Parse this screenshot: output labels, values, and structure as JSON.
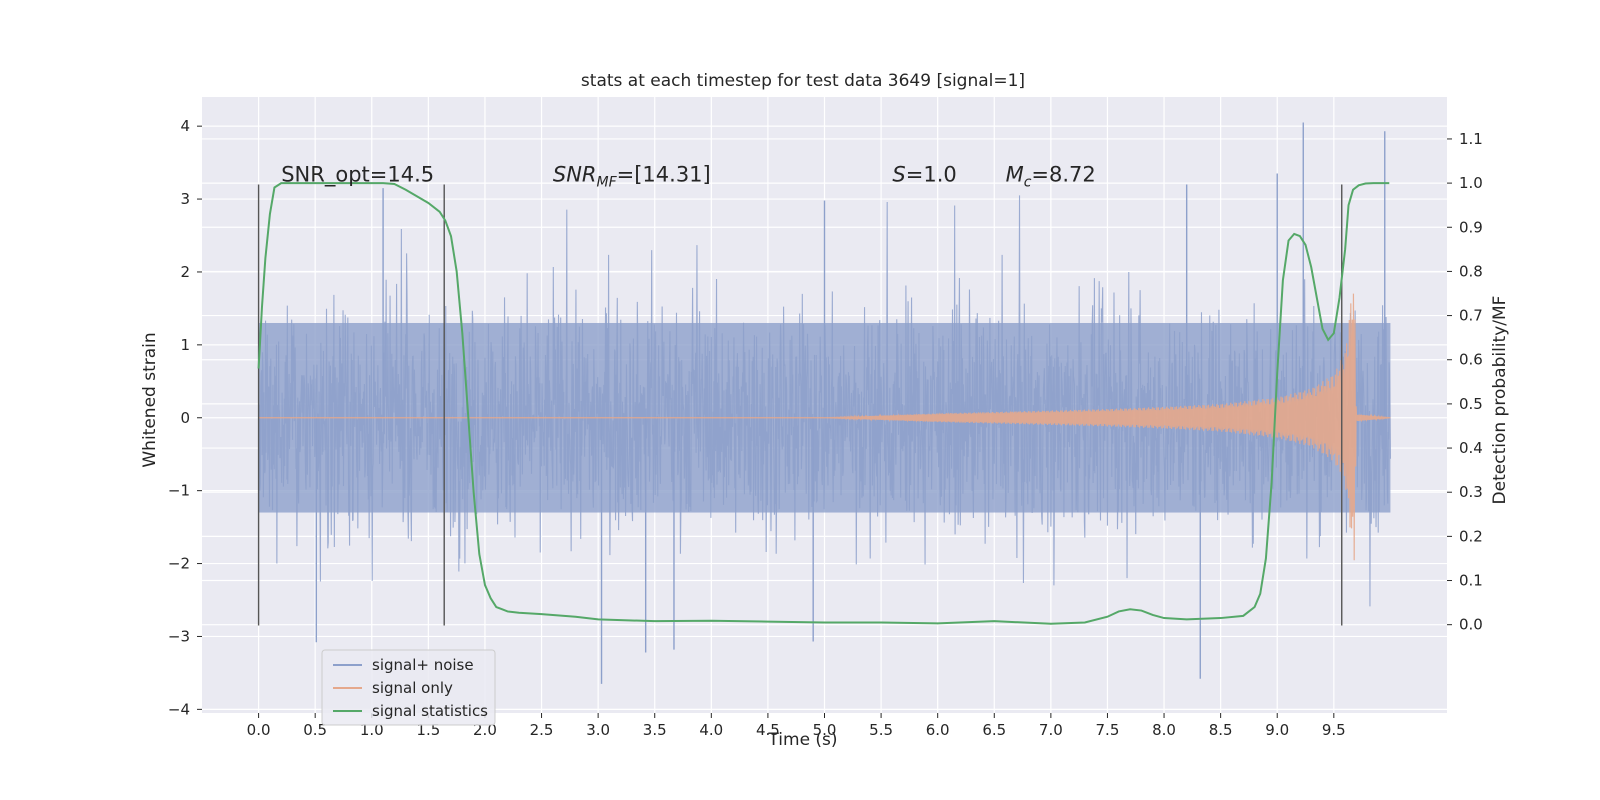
{
  "chart_data": {
    "type": "line",
    "title": "stats at each timestep for test data 3649 [signal=1]",
    "xlabel": "Time (s)",
    "ylabel": "Whitened strain",
    "y2label": "Detection probability/MF",
    "xlim": [
      -0.5,
      10.5
    ],
    "ylim": [
      -4.05,
      4.4
    ],
    "y2lim": [
      -0.2,
      1.195
    ],
    "xticks": [
      0.0,
      0.5,
      1.0,
      1.5,
      2.0,
      2.5,
      3.0,
      3.5,
      4.0,
      4.5,
      5.0,
      5.5,
      6.0,
      6.5,
      7.0,
      7.5,
      8.0,
      8.5,
      9.0,
      9.5
    ],
    "xtick_labels": [
      "0.0",
      "0.5",
      "1.0",
      "1.5",
      "2.0",
      "2.5",
      "3.0",
      "3.5",
      "4.0",
      "4.5",
      "5.0",
      "5.5",
      "6.0",
      "6.5",
      "7.0",
      "7.5",
      "8.0",
      "8.5",
      "9.0",
      "9.5"
    ],
    "yticks": [
      4,
      3,
      2,
      1,
      0,
      -1,
      -2,
      -3,
      -4
    ],
    "ytick_labels": [
      "4",
      "3",
      "2",
      "1",
      "0",
      "−1",
      "−2",
      "−3",
      "−4"
    ],
    "y2ticks": [
      1.1,
      1.0,
      0.9,
      0.8,
      0.7,
      0.6,
      0.5,
      0.4,
      0.3,
      0.2,
      0.1,
      0.0
    ],
    "y2tick_labels": [
      "1.1",
      "1.0",
      "0.9",
      "0.8",
      "0.7",
      "0.6",
      "0.5",
      "0.4",
      "0.3",
      "0.2",
      "0.1",
      "0.0"
    ],
    "grid": true,
    "legend_position": "lower-left",
    "annotations": [
      {
        "text": "SNR_opt=14.5",
        "x": 0.2,
        "y": 3.2
      },
      {
        "text": "SNR",
        "sub": "MF",
        "tail": "=[14.31]",
        "italic": true,
        "x": 2.6,
        "y": 3.2
      },
      {
        "text": "S",
        "tail": "=1.0",
        "italic": true,
        "x": 5.6,
        "y": 3.2
      },
      {
        "text": "M",
        "sub": "c",
        "tail": "=8.72",
        "italic": true,
        "x": 6.6,
        "y": 3.2
      }
    ],
    "vlines": {
      "x": [
        0.0,
        1.64,
        9.57
      ],
      "y_range": [
        -2.85,
        3.2
      ]
    },
    "series": [
      {
        "name": "signal+ noise",
        "color": "#8da0cb",
        "kind": "noise",
        "x_range": [
          0.0,
          10.0
        ],
        "band": 1.3,
        "extreme_points": [
          {
            "x": 0.51,
            "y": -3.08
          },
          {
            "x": 3.03,
            "y": -3.65
          },
          {
            "x": 3.42,
            "y": -3.22
          },
          {
            "x": 3.67,
            "y": -3.18
          },
          {
            "x": 4.9,
            "y": -3.07
          },
          {
            "x": 8.32,
            "y": -3.58
          },
          {
            "x": 9.23,
            "y": 4.05
          },
          {
            "x": 9.95,
            "y": 3.93
          },
          {
            "x": 8.2,
            "y": 3.2
          },
          {
            "x": 1.1,
            "y": 3.15
          },
          {
            "x": 5.0,
            "y": 2.98
          },
          {
            "x": 9.0,
            "y": 3.35
          }
        ]
      },
      {
        "name": "signal only",
        "color": "#e5a88c",
        "kind": "chirp",
        "x": [
          0.0,
          5.0,
          5.5,
          6.0,
          6.5,
          7.0,
          7.5,
          8.0,
          8.5,
          9.0,
          9.3,
          9.5,
          9.6,
          9.65,
          9.68,
          9.7,
          10.0
        ],
        "envelope": [
          0.0,
          0.0,
          0.03,
          0.06,
          0.08,
          0.1,
          0.12,
          0.15,
          0.19,
          0.28,
          0.4,
          0.6,
          0.9,
          1.6,
          2.0,
          0.05,
          0.0
        ]
      },
      {
        "name": "signal statistics",
        "color": "#55a868",
        "kind": "line",
        "axis": "right",
        "x": [
          0.0,
          0.03,
          0.06,
          0.1,
          0.14,
          0.2,
          0.3,
          0.5,
          0.8,
          1.0,
          1.1,
          1.2,
          1.3,
          1.4,
          1.5,
          1.6,
          1.65,
          1.7,
          1.75,
          1.8,
          1.85,
          1.9,
          1.95,
          2.0,
          2.05,
          2.1,
          2.15,
          2.2,
          2.3,
          2.5,
          2.8,
          3.0,
          3.5,
          4.0,
          4.5,
          5.0,
          5.5,
          6.0,
          6.5,
          7.0,
          7.3,
          7.5,
          7.6,
          7.7,
          7.8,
          7.9,
          8.0,
          8.2,
          8.5,
          8.7,
          8.8,
          8.85,
          8.9,
          8.95,
          9.0,
          9.05,
          9.1,
          9.15,
          9.2,
          9.25,
          9.3,
          9.35,
          9.4,
          9.45,
          9.5,
          9.55,
          9.6,
          9.63,
          9.67,
          9.72,
          9.78,
          9.85,
          9.9,
          9.93,
          9.96,
          9.99
        ],
        "y": [
          0.58,
          0.72,
          0.83,
          0.93,
          0.99,
          1.0,
          1.0,
          1.0,
          1.0,
          1.0,
          1.0,
          0.998,
          0.985,
          0.97,
          0.955,
          0.935,
          0.915,
          0.88,
          0.8,
          0.66,
          0.48,
          0.3,
          0.16,
          0.09,
          0.06,
          0.04,
          0.035,
          0.03,
          0.027,
          0.024,
          0.018,
          0.012,
          0.008,
          0.009,
          0.007,
          0.005,
          0.005,
          0.003,
          0.008,
          0.002,
          0.005,
          0.018,
          0.03,
          0.035,
          0.032,
          0.022,
          0.015,
          0.012,
          0.015,
          0.02,
          0.04,
          0.07,
          0.15,
          0.32,
          0.57,
          0.78,
          0.87,
          0.885,
          0.88,
          0.86,
          0.81,
          0.74,
          0.67,
          0.645,
          0.66,
          0.74,
          0.85,
          0.95,
          0.985,
          0.995,
          0.999,
          1.0,
          1.0,
          1.0,
          1.0,
          1.0
        ]
      }
    ]
  }
}
